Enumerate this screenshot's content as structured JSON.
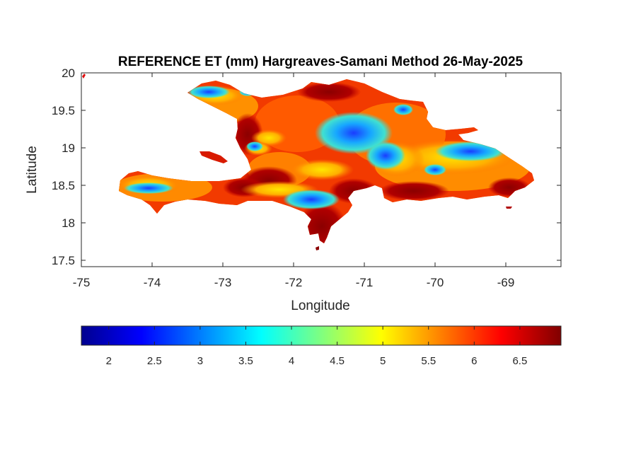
{
  "title": "REFERENCE ET (mm) Hargreaves-Samani Method  26-May-2025",
  "xlabel": "Longitude",
  "ylabel": "Latitude",
  "x_ticks": [
    "-75",
    "-74",
    "-73",
    "-72",
    "-71",
    "-70",
    "-69"
  ],
  "y_ticks": [
    "20",
    "19.5",
    "19",
    "18.5",
    "18",
    "17.5"
  ],
  "colorbar": {
    "ticks": [
      "2",
      "2.5",
      "3",
      "3.5",
      "4",
      "4.5",
      "5",
      "5.5",
      "6",
      "6.5"
    ],
    "range": [
      1.7,
      6.95
    ],
    "colormap": "jet"
  },
  "map": {
    "region": "Hispaniola",
    "lon_range": [
      -75,
      -68.3
    ],
    "lat_range": [
      17.4,
      20
    ],
    "variable": "Reference evapotranspiration (mm)",
    "colors": {
      "dark_red": "#8b0000",
      "red": "#d81a00",
      "orange": "#ff7a00",
      "yellow": "#ffd400",
      "cyan": "#40e0d0",
      "blue": "#1e5fff"
    }
  }
}
